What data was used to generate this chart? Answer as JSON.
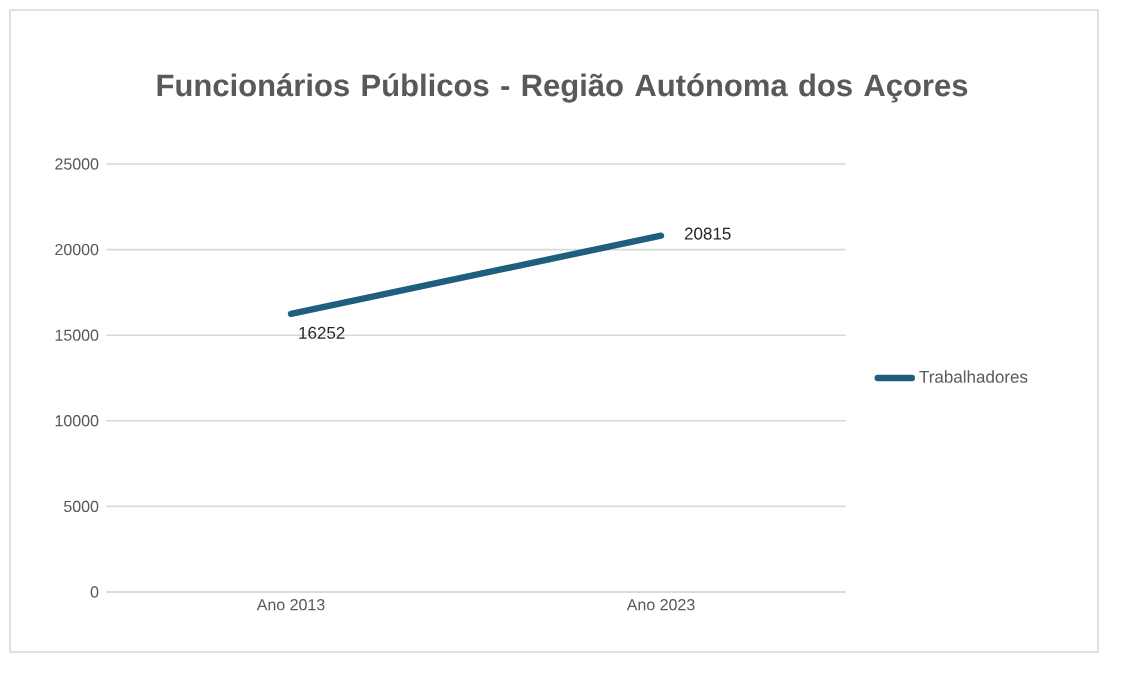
{
  "chart_data": {
    "type": "line",
    "title": "Funcionários Públicos - Região Autónoma dos Açores",
    "categories": [
      "Ano 2013",
      "Ano 2023"
    ],
    "series": [
      {
        "name": "Trabalhadores",
        "color": "#1f5f7e",
        "values": [
          16252,
          20815
        ]
      }
    ],
    "ylim": [
      0,
      25000
    ],
    "yticks": [
      0,
      5000,
      10000,
      15000,
      20000,
      25000
    ],
    "grid": "y",
    "legend": "right",
    "data_labels": true
  }
}
